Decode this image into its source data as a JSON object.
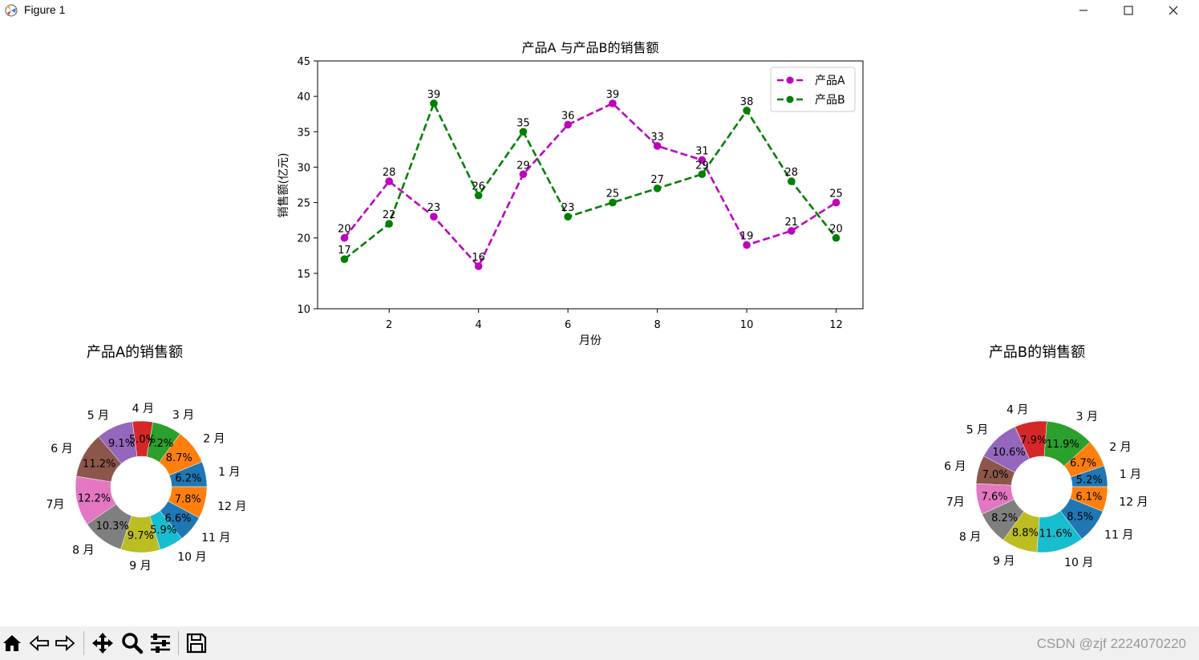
{
  "window": {
    "title": "Figure 1"
  },
  "watermark": "CSDN @zjf 2224070220",
  "chart_data": [
    {
      "type": "line",
      "title": "产品A 与产品B的销售额",
      "xlabel": "月份",
      "ylabel": "销售额(亿元)",
      "x": [
        1,
        2,
        3,
        4,
        5,
        6,
        7,
        8,
        9,
        10,
        11,
        12
      ],
      "xticks": [
        2,
        4,
        6,
        8,
        10,
        12
      ],
      "yticks": [
        10,
        15,
        20,
        25,
        30,
        35,
        40,
        45
      ],
      "xlim": [
        0.4,
        12.6
      ],
      "ylim": [
        10,
        45
      ],
      "grid": false,
      "legend_position": "top-right",
      "series": [
        {
          "name": "产品A",
          "color": "#bf00bf",
          "values": [
            20,
            28,
            23,
            16,
            29,
            36,
            39,
            33,
            31,
            19,
            21,
            25
          ]
        },
        {
          "name": "产品B",
          "color": "#008000",
          "values": [
            17,
            22,
            39,
            26,
            35,
            23,
            25,
            27,
            29,
            38,
            28,
            20
          ]
        }
      ]
    },
    {
      "type": "pie",
      "title": "产品A的销售额",
      "labels": [
        "1 月",
        "2 月",
        "3 月",
        "4 月",
        "5 月",
        "6 月",
        "7月",
        "8 月",
        "9 月",
        "10 月",
        "11 月",
        "12 月"
      ],
      "percent_labels": [
        "6.2%",
        "8.7%",
        "7.2%",
        "5.0%",
        "9.1%",
        "11.2%",
        "12.2%",
        "10.3%",
        "9.7%",
        "5.9%",
        "6.6%",
        "7.8%"
      ],
      "values": [
        6.2,
        8.7,
        7.2,
        5.0,
        9.1,
        11.2,
        12.2,
        10.3,
        9.7,
        5.9,
        6.6,
        7.8
      ]
    },
    {
      "type": "pie",
      "title": "产品B的销售额",
      "labels": [
        "1 月",
        "2 月",
        "3 月",
        "4 月",
        "5 月",
        "6 月",
        "7月",
        "8 月",
        "9 月",
        "10 月",
        "11 月",
        "12 月"
      ],
      "percent_labels": [
        "5.2%",
        "6.7%",
        "11.9%",
        "7.9%",
        "10.6%",
        "7.0%",
        "7.6%",
        "8.2%",
        "8.8%",
        "11.6%",
        "8.5%",
        "6.1%"
      ],
      "values": [
        5.2,
        6.7,
        11.9,
        7.9,
        10.6,
        7.0,
        7.6,
        8.2,
        8.8,
        11.6,
        8.5,
        6.1
      ]
    }
  ],
  "colors": [
    "#1f77b4",
    "#ff7f0e",
    "#2ca02c",
    "#d62728",
    "#9467bd",
    "#8c564b",
    "#e377c2",
    "#7f7f7f",
    "#bcbd22",
    "#17becf",
    "#1f77b4",
    "#ff7f0e"
  ],
  "toolbar": {
    "icons": [
      "home-icon",
      "back-icon",
      "forward-icon",
      "pan-icon",
      "zoom-icon",
      "configure-icon",
      "save-icon"
    ]
  }
}
